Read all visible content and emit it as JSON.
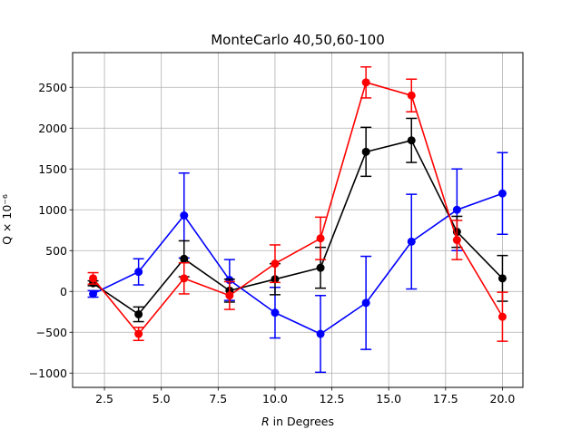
{
  "chart_data": {
    "type": "line",
    "title": "MonteCarlo 40,50,60-100",
    "xlabel_italic": "R",
    "xlabel_rest": " in Degrees",
    "ylabel": "Q × 10⁻⁶",
    "xlim": [
      1.1,
      20.9
    ],
    "ylim": [
      -1175,
      2925
    ],
    "xticks": [
      2.5,
      5.0,
      7.5,
      10.0,
      12.5,
      15.0,
      17.5,
      20.0
    ],
    "xtick_labels": [
      "2.5",
      "5.0",
      "7.5",
      "10.0",
      "12.5",
      "15.0",
      "17.5",
      "20.0"
    ],
    "yticks": [
      -1000,
      -500,
      0,
      500,
      1000,
      1500,
      2000,
      2500
    ],
    "ytick_labels": [
      "−1000",
      "−500",
      "0",
      "500",
      "1000",
      "1500",
      "2000",
      "2500"
    ],
    "grid": true,
    "series": [
      {
        "color": "#0000ff",
        "x": [
          2,
          4,
          6,
          8,
          10,
          12,
          14,
          16,
          18,
          20
        ],
        "y": [
          -30,
          240,
          930,
          140,
          -260,
          -520,
          -140,
          610,
          1000,
          1200
        ],
        "err": [
          40,
          160,
          520,
          250,
          310,
          470,
          570,
          580,
          500,
          500
        ]
      },
      {
        "color": "#000000",
        "x": [
          2,
          4,
          6,
          8,
          10,
          12,
          14,
          16,
          18,
          20
        ],
        "y": [
          100,
          -280,
          400,
          10,
          150,
          290,
          1710,
          1850,
          730,
          160
        ],
        "err": [
          30,
          90,
          220,
          140,
          190,
          250,
          300,
          270,
          190,
          280
        ]
      },
      {
        "color": "#ff0000",
        "x": [
          2,
          4,
          6,
          8,
          10,
          12,
          14,
          16,
          18,
          20
        ],
        "y": [
          160,
          -520,
          160,
          -50,
          340,
          650,
          2560,
          2400,
          630,
          -310
        ],
        "err": [
          70,
          80,
          190,
          170,
          230,
          260,
          190,
          200,
          240,
          300
        ]
      }
    ]
  }
}
